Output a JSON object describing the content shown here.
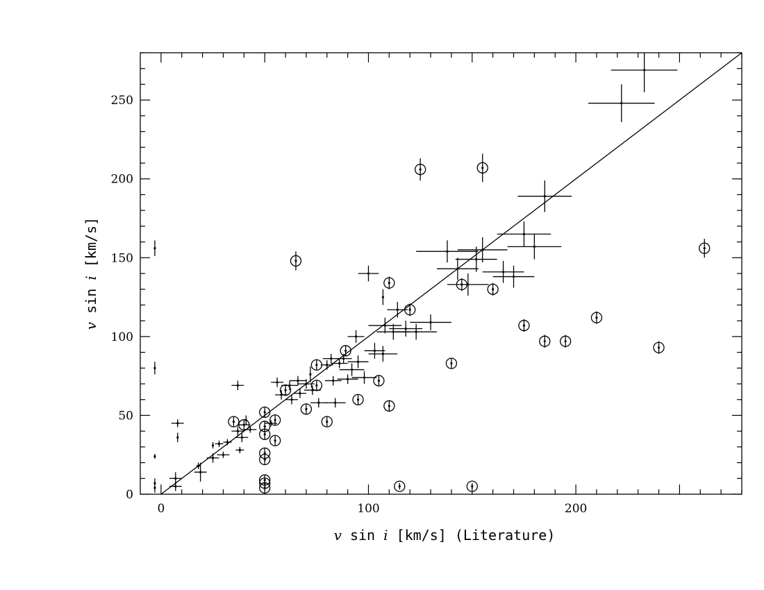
{
  "chart_data": {
    "type": "scatter",
    "xlabel": {
      "var": "v",
      "mid": " sin ",
      "var2": "i",
      "rest": " [km/s] (Literature)"
    },
    "ylabel": {
      "var": "v",
      "mid": " sin ",
      "var2": "i",
      "rest": " [km/s]"
    },
    "xlim": [
      -10,
      280
    ],
    "ylim": [
      0,
      280
    ],
    "x_ticks": [
      0,
      100,
      200
    ],
    "y_ticks": [
      0,
      50,
      100,
      150,
      200,
      250
    ],
    "grid": false,
    "line": {
      "label": "one-to-one",
      "x": [
        -10,
        280
      ],
      "y": [
        -10,
        280
      ]
    },
    "points": [
      {
        "x": -3,
        "y": 156,
        "xerr": 0,
        "yerr": 5,
        "circled": false
      },
      {
        "x": -3,
        "y": 80,
        "xerr": 0,
        "yerr": 4,
        "circled": false
      },
      {
        "x": -3,
        "y": 24,
        "xerr": 0,
        "yerr": 1.5,
        "circled": false
      },
      {
        "x": -3,
        "y": 7,
        "xerr": 0,
        "yerr": 3,
        "circled": false
      },
      {
        "x": -3,
        "y": 4,
        "xerr": 0,
        "yerr": 3,
        "circled": false
      },
      {
        "x": 8,
        "y": 45,
        "xerr": 3,
        "yerr": 2.5,
        "circled": false
      },
      {
        "x": 8,
        "y": 36,
        "xerr": 0,
        "yerr": 3,
        "circled": false
      },
      {
        "x": 7,
        "y": 10,
        "xerr": 3,
        "yerr": 4,
        "circled": false
      },
      {
        "x": 7,
        "y": 5,
        "xerr": 3,
        "yerr": 3,
        "circled": false
      },
      {
        "x": 18,
        "y": 18,
        "xerr": 1,
        "yerr": 2,
        "circled": false
      },
      {
        "x": 19,
        "y": 14,
        "xerr": 3,
        "yerr": 6,
        "circled": false
      },
      {
        "x": 25,
        "y": 31,
        "xerr": 0,
        "yerr": 2,
        "circled": false
      },
      {
        "x": 25,
        "y": 23,
        "xerr": 3,
        "yerr": 3,
        "circled": false
      },
      {
        "x": 30,
        "y": 25,
        "xerr": 3,
        "yerr": 2,
        "circled": false
      },
      {
        "x": 28,
        "y": 32,
        "xerr": 2,
        "yerr": 2,
        "circled": false
      },
      {
        "x": 32,
        "y": 33,
        "xerr": 2,
        "yerr": 2,
        "circled": false
      },
      {
        "x": 37,
        "y": 69,
        "xerr": 3,
        "yerr": 3,
        "circled": false
      },
      {
        "x": 35,
        "y": 46,
        "xerr": 0,
        "yerr": 3,
        "circled": true
      },
      {
        "x": 37,
        "y": 40,
        "xerr": 3,
        "yerr": 3,
        "circled": false
      },
      {
        "x": 40,
        "y": 44,
        "xerr": 3,
        "yerr": 3,
        "circled": true
      },
      {
        "x": 39,
        "y": 36,
        "xerr": 3,
        "yerr": 3,
        "circled": false
      },
      {
        "x": 41,
        "y": 47,
        "xerr": 0,
        "yerr": 3,
        "circled": false
      },
      {
        "x": 38,
        "y": 28,
        "xerr": 2,
        "yerr": 2,
        "circled": false
      },
      {
        "x": 43,
        "y": 41,
        "xerr": 3,
        "yerr": 2,
        "circled": false
      },
      {
        "x": 50,
        "y": 52,
        "xerr": 0,
        "yerr": 3,
        "circled": true
      },
      {
        "x": 50,
        "y": 43,
        "xerr": 0,
        "yerr": 3,
        "circled": true
      },
      {
        "x": 50,
        "y": 38,
        "xerr": 0,
        "yerr": 3,
        "circled": true
      },
      {
        "x": 50,
        "y": 26,
        "xerr": 0,
        "yerr": 3,
        "circled": true
      },
      {
        "x": 50,
        "y": 22,
        "xerr": 0,
        "yerr": 3,
        "circled": true
      },
      {
        "x": 50,
        "y": 9,
        "xerr": 0,
        "yerr": 3,
        "circled": true
      },
      {
        "x": 50,
        "y": 7,
        "xerr": 0,
        "yerr": 2,
        "circled": true
      },
      {
        "x": 50,
        "y": 4,
        "xerr": 0,
        "yerr": 2,
        "circled": true
      },
      {
        "x": 53,
        "y": 45,
        "xerr": 3,
        "yerr": 2,
        "circled": false
      },
      {
        "x": 55,
        "y": 47,
        "xerr": 0,
        "yerr": 3,
        "circled": true
      },
      {
        "x": 55,
        "y": 34,
        "xerr": 0,
        "yerr": 3,
        "circled": true
      },
      {
        "x": 56,
        "y": 71,
        "xerr": 3,
        "yerr": 3,
        "circled": false
      },
      {
        "x": 58,
        "y": 63,
        "xerr": 3,
        "yerr": 3,
        "circled": false
      },
      {
        "x": 60,
        "y": 66,
        "xerr": 0,
        "yerr": 3,
        "circled": true
      },
      {
        "x": 62,
        "y": 69,
        "xerr": 4,
        "yerr": 3,
        "circled": false
      },
      {
        "x": 63,
        "y": 60,
        "xerr": 3,
        "yerr": 3,
        "circled": false
      },
      {
        "x": 65,
        "y": 148,
        "xerr": 0,
        "yerr": 6,
        "circled": true
      },
      {
        "x": 66,
        "y": 72,
        "xerr": 4,
        "yerr": 3,
        "circled": false
      },
      {
        "x": 67,
        "y": 64,
        "xerr": 3,
        "yerr": 3,
        "circled": false
      },
      {
        "x": 70,
        "y": 54,
        "xerr": 0,
        "yerr": 3,
        "circled": true
      },
      {
        "x": 70,
        "y": 70,
        "xerr": 4,
        "yerr": 3,
        "circled": false
      },
      {
        "x": 72,
        "y": 76,
        "xerr": 0,
        "yerr": 5,
        "circled": false
      },
      {
        "x": 73,
        "y": 66,
        "xerr": 4,
        "yerr": 3,
        "circled": false
      },
      {
        "x": 75,
        "y": 82,
        "xerr": 0,
        "yerr": 3,
        "circled": true
      },
      {
        "x": 75,
        "y": 69,
        "xerr": 0,
        "yerr": 3,
        "circled": true
      },
      {
        "x": 76,
        "y": 58,
        "xerr": 4,
        "yerr": 3,
        "circled": false
      },
      {
        "x": 80,
        "y": 46,
        "xerr": 0,
        "yerr": 3,
        "circled": true
      },
      {
        "x": 80,
        "y": 82,
        "xerr": 3,
        "yerr": 3,
        "circled": false
      },
      {
        "x": 82,
        "y": 86,
        "xerr": 4,
        "yerr": 3,
        "circled": false
      },
      {
        "x": 83,
        "y": 72,
        "xerr": 4,
        "yerr": 3,
        "circled": false
      },
      {
        "x": 84,
        "y": 58,
        "xerr": 5,
        "yerr": 3,
        "circled": false
      },
      {
        "x": 86,
        "y": 83,
        "xerr": 4,
        "yerr": 3,
        "circled": false
      },
      {
        "x": 88,
        "y": 86,
        "xerr": 4,
        "yerr": 3,
        "circled": false
      },
      {
        "x": 89,
        "y": 91,
        "xerr": 0,
        "yerr": 3,
        "circled": true
      },
      {
        "x": 90,
        "y": 73,
        "xerr": 5,
        "yerr": 3,
        "circled": false
      },
      {
        "x": 92,
        "y": 79,
        "xerr": 6,
        "yerr": 4,
        "circled": false
      },
      {
        "x": 95,
        "y": 60,
        "xerr": 0,
        "yerr": 3,
        "circled": true
      },
      {
        "x": 94,
        "y": 100,
        "xerr": 4,
        "yerr": 4,
        "circled": false
      },
      {
        "x": 95,
        "y": 84,
        "xerr": 5,
        "yerr": 4,
        "circled": false
      },
      {
        "x": 98,
        "y": 74,
        "xerr": 6,
        "yerr": 4,
        "circled": false
      },
      {
        "x": 100,
        "y": 140,
        "xerr": 5,
        "yerr": 5,
        "circled": false
      },
      {
        "x": 103,
        "y": 91,
        "xerr": 5,
        "yerr": 5,
        "circled": false
      },
      {
        "x": 105,
        "y": 72,
        "xerr": 0,
        "yerr": 3,
        "circled": true
      },
      {
        "x": 107,
        "y": 89,
        "xerr": 7,
        "yerr": 5,
        "circled": false
      },
      {
        "x": 107,
        "y": 125,
        "xerr": 0,
        "yerr": 5,
        "circled": false
      },
      {
        "x": 108,
        "y": 107,
        "xerr": 8,
        "yerr": 5,
        "circled": false
      },
      {
        "x": 110,
        "y": 134,
        "xerr": 0,
        "yerr": 4,
        "circled": true
      },
      {
        "x": 110,
        "y": 56,
        "xerr": 0,
        "yerr": 3,
        "circled": true
      },
      {
        "x": 112,
        "y": 103,
        "xerr": 8,
        "yerr": 5,
        "circled": false
      },
      {
        "x": 114,
        "y": 117,
        "xerr": 5,
        "yerr": 5,
        "circled": false
      },
      {
        "x": 115,
        "y": 5,
        "xerr": 0,
        "yerr": 2,
        "circled": true
      },
      {
        "x": 118,
        "y": 105,
        "xerr": 8,
        "yerr": 5,
        "circled": false
      },
      {
        "x": 120,
        "y": 117,
        "xerr": 0,
        "yerr": 4,
        "circled": true
      },
      {
        "x": 123,
        "y": 103,
        "xerr": 10,
        "yerr": 5,
        "circled": false
      },
      {
        "x": 125,
        "y": 206,
        "xerr": 0,
        "yerr": 7,
        "circled": true
      },
      {
        "x": 130,
        "y": 109,
        "xerr": 10,
        "yerr": 5,
        "circled": false
      },
      {
        "x": 138,
        "y": 154,
        "xerr": 15,
        "yerr": 7,
        "circled": false
      },
      {
        "x": 140,
        "y": 83,
        "xerr": 0,
        "yerr": 3,
        "circled": true
      },
      {
        "x": 143,
        "y": 143,
        "xerr": 10,
        "yerr": 7,
        "circled": false
      },
      {
        "x": 145,
        "y": 133,
        "xerr": 0,
        "yerr": 4,
        "circled": true
      },
      {
        "x": 148,
        "y": 133,
        "xerr": 10,
        "yerr": 7,
        "circled": false
      },
      {
        "x": 150,
        "y": 5,
        "xerr": 0,
        "yerr": 2,
        "circled": true
      },
      {
        "x": 152,
        "y": 149,
        "xerr": 10,
        "yerr": 8,
        "circled": false
      },
      {
        "x": 155,
        "y": 207,
        "xerr": 0,
        "yerr": 9,
        "circled": true
      },
      {
        "x": 155,
        "y": 155,
        "xerr": 12,
        "yerr": 8,
        "circled": false
      },
      {
        "x": 160,
        "y": 130,
        "xerr": 0,
        "yerr": 4,
        "circled": true
      },
      {
        "x": 165,
        "y": 141,
        "xerr": 10,
        "yerr": 7,
        "circled": false
      },
      {
        "x": 170,
        "y": 138,
        "xerr": 10,
        "yerr": 7,
        "circled": false
      },
      {
        "x": 175,
        "y": 107,
        "xerr": 0,
        "yerr": 4,
        "circled": true
      },
      {
        "x": 175,
        "y": 165,
        "xerr": 13,
        "yerr": 8,
        "circled": false
      },
      {
        "x": 180,
        "y": 157,
        "xerr": 13,
        "yerr": 8,
        "circled": false
      },
      {
        "x": 185,
        "y": 97,
        "xerr": 0,
        "yerr": 4,
        "circled": true
      },
      {
        "x": 185,
        "y": 189,
        "xerr": 13,
        "yerr": 10,
        "circled": false
      },
      {
        "x": 195,
        "y": 97,
        "xerr": 0,
        "yerr": 4,
        "circled": true
      },
      {
        "x": 210,
        "y": 112,
        "xerr": 0,
        "yerr": 4,
        "circled": true
      },
      {
        "x": 222,
        "y": 248,
        "xerr": 16,
        "yerr": 12,
        "circled": false
      },
      {
        "x": 233,
        "y": 269,
        "xerr": 16,
        "yerr": 14,
        "circled": false
      },
      {
        "x": 240,
        "y": 93,
        "xerr": 0,
        "yerr": 4,
        "circled": true
      },
      {
        "x": 262,
        "y": 156,
        "xerr": 0,
        "yerr": 6,
        "circled": true
      }
    ]
  }
}
